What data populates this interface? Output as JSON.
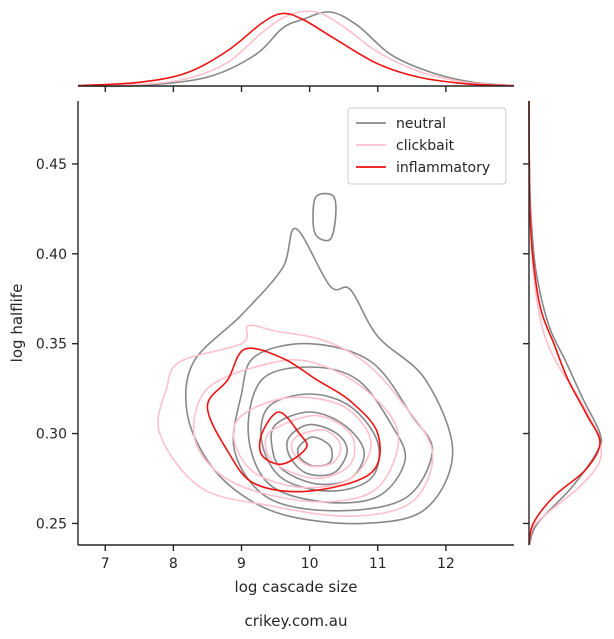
{
  "chart_data": {
    "type": "kde-joint",
    "xlabel": "log cascade size",
    "ylabel": "log halflife",
    "caption": "crikey.com.au",
    "xlim": [
      6.6,
      13.0
    ],
    "ylim": [
      0.238,
      0.485
    ],
    "xticks": [
      "7",
      "8",
      "9",
      "10",
      "11",
      "12"
    ],
    "yticks": [
      "0.25",
      "0.30",
      "0.35",
      "0.40",
      "0.45"
    ],
    "xtick_values": [
      7,
      8,
      9,
      10,
      11,
      12
    ],
    "ytick_values": [
      0.25,
      0.3,
      0.35,
      0.4,
      0.45
    ],
    "legend": {
      "position": "top-right"
    },
    "series": [
      {
        "name": "neutral",
        "color": "#888888",
        "marginal_x": [
          [
            6.6,
            0
          ],
          [
            7.5,
            0.005
          ],
          [
            8.5,
            0.12
          ],
          [
            9.2,
            0.42
          ],
          [
            9.6,
            0.78
          ],
          [
            9.9,
            0.9
          ],
          [
            10.3,
            1.0
          ],
          [
            10.7,
            0.82
          ],
          [
            11.2,
            0.42
          ],
          [
            11.8,
            0.18
          ],
          [
            12.4,
            0.05
          ],
          [
            13.0,
            0.005
          ]
        ],
        "marginal_y": [
          [
            0.238,
            0.005
          ],
          [
            0.25,
            0.12
          ],
          [
            0.27,
            0.6
          ],
          [
            0.29,
            0.96
          ],
          [
            0.3,
            1.0
          ],
          [
            0.32,
            0.75
          ],
          [
            0.34,
            0.52
          ],
          [
            0.36,
            0.28
          ],
          [
            0.39,
            0.1
          ],
          [
            0.42,
            0.03
          ],
          [
            0.45,
            0.005
          ],
          [
            0.485,
            0
          ]
        ],
        "contours": [
          [
            [
              9.0,
              0.366
            ],
            [
              9.6,
              0.392
            ],
            [
              9.8,
              0.414
            ],
            [
              10.3,
              0.382
            ],
            [
              10.6,
              0.38
            ],
            [
              11.0,
              0.354
            ],
            [
              11.7,
              0.33
            ],
            [
              12.1,
              0.29
            ],
            [
              11.7,
              0.258
            ],
            [
              10.8,
              0.25
            ],
            [
              9.7,
              0.254
            ],
            [
              9.0,
              0.266
            ],
            [
              8.5,
              0.285
            ],
            [
              8.2,
              0.312
            ],
            [
              8.3,
              0.34
            ]
          ],
          [
            [
              10.05,
              0.42
            ],
            [
              10.1,
              0.432
            ],
            [
              10.35,
              0.432
            ],
            [
              10.38,
              0.42
            ],
            [
              10.3,
              0.408
            ],
            [
              10.1,
              0.41
            ]
          ],
          [
            [
              9.2,
              0.343
            ],
            [
              10.0,
              0.35
            ],
            [
              10.9,
              0.34
            ],
            [
              11.5,
              0.31
            ],
            [
              11.8,
              0.29
            ],
            [
              11.4,
              0.264
            ],
            [
              10.4,
              0.257
            ],
            [
              9.4,
              0.264
            ],
            [
              8.9,
              0.29
            ],
            [
              9.0,
              0.322
            ]
          ],
          [
            [
              9.3,
              0.33
            ],
            [
              10.0,
              0.337
            ],
            [
              10.7,
              0.33
            ],
            [
              11.2,
              0.305
            ],
            [
              11.4,
              0.285
            ],
            [
              11.0,
              0.265
            ],
            [
              10.2,
              0.262
            ],
            [
              9.4,
              0.272
            ],
            [
              9.1,
              0.3
            ]
          ],
          [
            [
              9.4,
              0.315
            ],
            [
              10.0,
              0.322
            ],
            [
              10.6,
              0.315
            ],
            [
              11.0,
              0.295
            ],
            [
              10.9,
              0.275
            ],
            [
              10.3,
              0.268
            ],
            [
              9.6,
              0.275
            ],
            [
              9.3,
              0.295
            ]
          ],
          [
            [
              9.5,
              0.305
            ],
            [
              10.0,
              0.312
            ],
            [
              10.5,
              0.305
            ],
            [
              10.8,
              0.29
            ],
            [
              10.6,
              0.275
            ],
            [
              10.1,
              0.272
            ],
            [
              9.6,
              0.28
            ],
            [
              9.45,
              0.292
            ]
          ],
          [
            [
              9.7,
              0.298
            ],
            [
              10.0,
              0.305
            ],
            [
              10.4,
              0.3
            ],
            [
              10.55,
              0.29
            ],
            [
              10.35,
              0.278
            ],
            [
              9.95,
              0.278
            ],
            [
              9.7,
              0.288
            ]
          ],
          [
            [
              9.85,
              0.293
            ],
            [
              10.05,
              0.298
            ],
            [
              10.3,
              0.293
            ],
            [
              10.3,
              0.284
            ],
            [
              10.05,
              0.282
            ],
            [
              9.85,
              0.287
            ]
          ]
        ]
      },
      {
        "name": "clickbait",
        "color": "#ffc0cb",
        "marginal_x": [
          [
            6.6,
            0
          ],
          [
            7.5,
            0.02
          ],
          [
            8.2,
            0.1
          ],
          [
            8.8,
            0.32
          ],
          [
            9.3,
            0.72
          ],
          [
            9.7,
            0.96
          ],
          [
            10.1,
            1.0
          ],
          [
            10.5,
            0.8
          ],
          [
            11.0,
            0.46
          ],
          [
            11.6,
            0.2
          ],
          [
            12.3,
            0.05
          ],
          [
            13.0,
            0.005
          ]
        ],
        "marginal_y": [
          [
            0.238,
            0.003
          ],
          [
            0.25,
            0.1
          ],
          [
            0.27,
            0.7
          ],
          [
            0.285,
            1.0
          ],
          [
            0.3,
            0.96
          ],
          [
            0.32,
            0.7
          ],
          [
            0.34,
            0.38
          ],
          [
            0.36,
            0.18
          ],
          [
            0.39,
            0.06
          ],
          [
            0.42,
            0.02
          ],
          [
            0.45,
            0.003
          ],
          [
            0.485,
            0
          ]
        ],
        "contours": [
          [
            [
              8.1,
              0.34
            ],
            [
              9.0,
              0.35
            ],
            [
              9.1,
              0.36
            ],
            [
              9.5,
              0.357
            ],
            [
              10.2,
              0.352
            ],
            [
              10.8,
              0.34
            ],
            [
              11.3,
              0.32
            ],
            [
              11.8,
              0.29
            ],
            [
              11.5,
              0.262
            ],
            [
              10.6,
              0.254
            ],
            [
              9.4,
              0.26
            ],
            [
              8.4,
              0.27
            ],
            [
              7.8,
              0.3
            ],
            [
              7.9,
              0.325
            ]
          ],
          [
            [
              8.5,
              0.325
            ],
            [
              9.3,
              0.338
            ],
            [
              10.0,
              0.34
            ],
            [
              10.8,
              0.325
            ],
            [
              11.3,
              0.3
            ],
            [
              11.0,
              0.27
            ],
            [
              10.2,
              0.262
            ],
            [
              9.2,
              0.268
            ],
            [
              8.6,
              0.28
            ],
            [
              8.3,
              0.3
            ]
          ],
          [
            [
              9.0,
              0.31
            ],
            [
              9.7,
              0.32
            ],
            [
              10.5,
              0.315
            ],
            [
              10.9,
              0.295
            ],
            [
              10.6,
              0.275
            ],
            [
              9.9,
              0.27
            ],
            [
              9.2,
              0.278
            ],
            [
              8.9,
              0.295
            ]
          ],
          [
            [
              9.5,
              0.303
            ],
            [
              10.1,
              0.31
            ],
            [
              10.6,
              0.3
            ],
            [
              10.6,
              0.283
            ],
            [
              10.1,
              0.275
            ],
            [
              9.5,
              0.283
            ],
            [
              9.35,
              0.295
            ]
          ],
          [
            [
              9.8,
              0.298
            ],
            [
              10.2,
              0.302
            ],
            [
              10.45,
              0.294
            ],
            [
              10.35,
              0.284
            ],
            [
              10.0,
              0.282
            ],
            [
              9.75,
              0.29
            ]
          ]
        ]
      },
      {
        "name": "inflammatory",
        "color": "#ee1111",
        "marginal_x": [
          [
            6.6,
            0.005
          ],
          [
            7.5,
            0.05
          ],
          [
            8.2,
            0.18
          ],
          [
            8.8,
            0.48
          ],
          [
            9.3,
            0.85
          ],
          [
            9.6,
            0.98
          ],
          [
            9.9,
            0.9
          ],
          [
            10.4,
            0.62
          ],
          [
            11.0,
            0.3
          ],
          [
            11.6,
            0.12
          ],
          [
            12.3,
            0.03
          ],
          [
            13.0,
            0.003
          ]
        ],
        "marginal_y": [
          [
            0.238,
            0
          ],
          [
            0.25,
            0.06
          ],
          [
            0.265,
            0.35
          ],
          [
            0.28,
            0.8
          ],
          [
            0.295,
            1.0
          ],
          [
            0.31,
            0.82
          ],
          [
            0.33,
            0.55
          ],
          [
            0.35,
            0.35
          ],
          [
            0.37,
            0.16
          ],
          [
            0.4,
            0.05
          ],
          [
            0.43,
            0.01
          ],
          [
            0.485,
            0
          ]
        ],
        "contours": [
          [
            [
              8.8,
              0.33
            ],
            [
              9.05,
              0.347
            ],
            [
              9.6,
              0.342
            ],
            [
              10.1,
              0.33
            ],
            [
              10.6,
              0.318
            ],
            [
              11.0,
              0.3
            ],
            [
              10.9,
              0.278
            ],
            [
              10.0,
              0.268
            ],
            [
              9.2,
              0.272
            ],
            [
              8.8,
              0.29
            ],
            [
              8.5,
              0.315
            ]
          ],
          [
            [
              9.3,
              0.3
            ],
            [
              9.55,
              0.312
            ],
            [
              9.85,
              0.3
            ],
            [
              9.95,
              0.292
            ],
            [
              9.6,
              0.283
            ],
            [
              9.3,
              0.288
            ]
          ]
        ]
      }
    ]
  }
}
